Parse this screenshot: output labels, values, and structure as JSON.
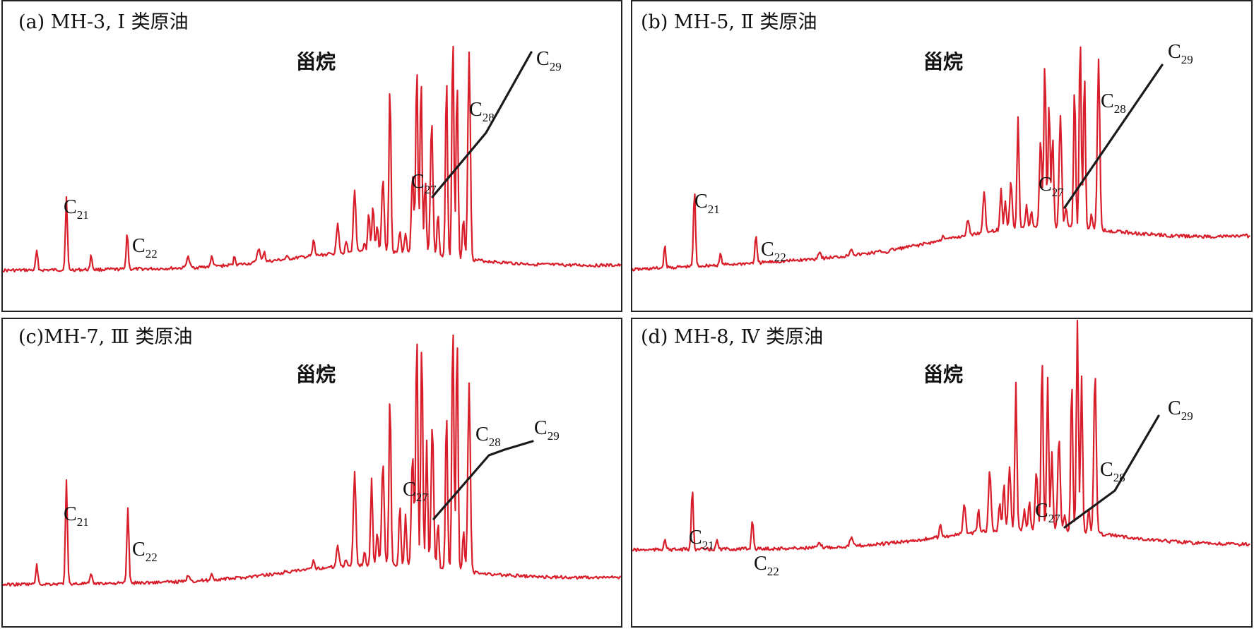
{
  "chart_data": [
    {
      "type": "line",
      "title": "(a) MH-3, Ⅰ 类原油",
      "compound_label": "甾烷",
      "peaks": [
        {
          "name": "C",
          "sub": "21",
          "height": 0.28
        },
        {
          "name": "C",
          "sub": "22",
          "height": 0.16
        },
        {
          "name": "C",
          "sub": "27",
          "height": 0.38
        },
        {
          "name": "C",
          "sub": "28",
          "height": 0.62
        },
        {
          "name": "C",
          "sub": "29",
          "height": 0.87
        }
      ],
      "trend_line": [
        "C27",
        "C28",
        "C29"
      ]
    },
    {
      "type": "line",
      "title": "(b) MH-5, Ⅱ 类原油",
      "compound_label": "甾烷",
      "peaks": [
        {
          "name": "C",
          "sub": "21",
          "height": 0.34
        },
        {
          "name": "C",
          "sub": "22",
          "height": 0.16
        },
        {
          "name": "C",
          "sub": "27",
          "height": 0.41
        },
        {
          "name": "C",
          "sub": "28",
          "height": 0.62
        },
        {
          "name": "C",
          "sub": "29",
          "height": 0.8
        }
      ],
      "trend_line": [
        "C27",
        "C28",
        "C29"
      ]
    },
    {
      "type": "line",
      "title": "(c)MH-7, Ⅲ 类原油",
      "compound_label": "甾烷",
      "peaks": [
        {
          "name": "C",
          "sub": "21",
          "height": 0.27
        },
        {
          "name": "C",
          "sub": "22",
          "height": 0.16
        },
        {
          "name": "C",
          "sub": "27",
          "height": 0.38
        },
        {
          "name": "C",
          "sub": "28",
          "height": 0.55
        },
        {
          "name": "C",
          "sub": "29",
          "height": 0.63
        }
      ],
      "trend_line": [
        "C27",
        "C28",
        "C29"
      ]
    },
    {
      "type": "line",
      "title": "(d) MH-8, Ⅳ 类原油",
      "compound_label": "甾烷",
      "peaks": [
        {
          "name": "C",
          "sub": "21",
          "height": 0.24
        },
        {
          "name": "C",
          "sub": "22",
          "height": 0.12
        },
        {
          "name": "C",
          "sub": "27",
          "height": 0.35
        },
        {
          "name": "C",
          "sub": "28",
          "height": 0.47
        },
        {
          "name": "C",
          "sub": "29",
          "height": 0.76
        }
      ],
      "trend_line": [
        "C27",
        "C28",
        "C29"
      ]
    }
  ],
  "colors": {
    "trace": "#d81e2a",
    "trend": "#1a1a1a",
    "border": "#222222"
  }
}
